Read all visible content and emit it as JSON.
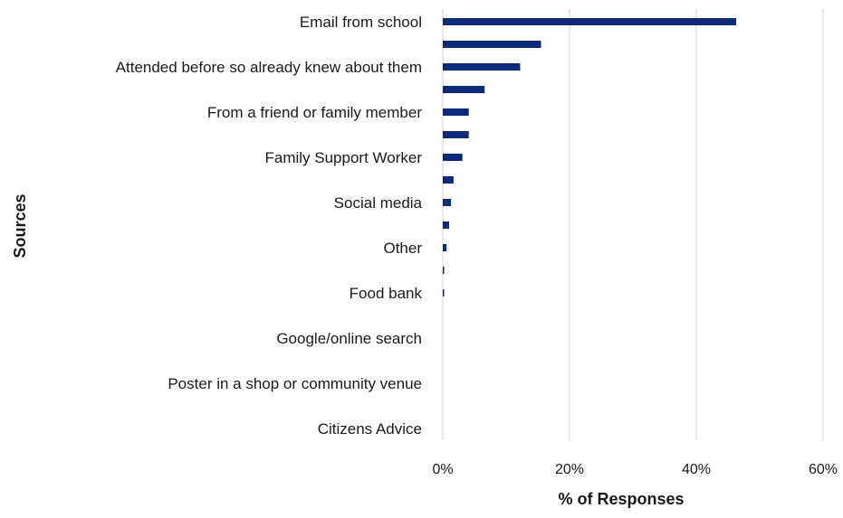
{
  "chart_data": {
    "type": "bar",
    "orientation": "horizontal",
    "categories": [
      "Email from school",
      "",
      "Attended before so already knew about them",
      "",
      "From a friend or family member",
      "",
      "Family Support Worker",
      "",
      "Social media",
      "",
      "Other",
      "",
      "Food bank",
      "",
      "Google/online search",
      "",
      "Poster in a shop or community venue",
      "",
      "Citizens Advice"
    ],
    "values": [
      46.3,
      15.5,
      12.2,
      6.6,
      4.1,
      4.1,
      3.1,
      1.7,
      1.3,
      1.0,
      0.6,
      0.2,
      0.2,
      0,
      0,
      0,
      0,
      0,
      0
    ],
    "xlabel": "% of Responses",
    "ylabel": "Sources",
    "xlim": [
      0,
      60
    ],
    "xticks": [
      "0%",
      "20%",
      "40%",
      "60%"
    ],
    "xtick_values": [
      0,
      20,
      40,
      60
    ],
    "grid": "vertical",
    "bar_color": "#0d2a7a"
  }
}
